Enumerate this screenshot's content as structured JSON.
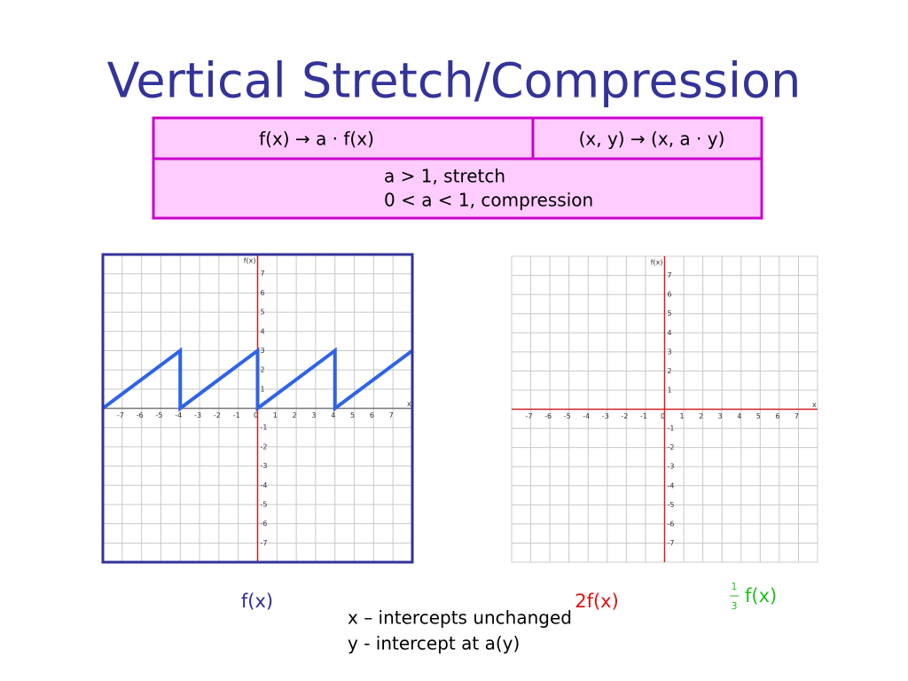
{
  "title": "Vertical Stretch/Compression",
  "table": {
    "header": [
      "f(x) → a · f(x)",
      "(x, y) → (x, a · y)"
    ],
    "body": [
      "a > 1, stretch",
      "0 < a < 1, compression"
    ]
  },
  "graphs": [
    {
      "x_label": "x",
      "y_label": "f(x)",
      "frame": true,
      "xlim": [
        -8,
        8
      ],
      "ylim": [
        -8,
        8
      ],
      "xticks": [
        -7,
        -6,
        -5,
        -4,
        -3,
        -2,
        -1,
        0,
        1,
        2,
        3,
        4,
        5,
        6,
        7
      ],
      "yticks": [
        -7,
        -6,
        -5,
        -4,
        -3,
        -2,
        -1,
        1,
        2,
        3,
        4,
        5,
        6,
        7
      ],
      "line": {
        "color": "#2f63e6",
        "x": [
          -8,
          -4,
          -4,
          0,
          0,
          4,
          4,
          8
        ],
        "y": [
          0,
          3,
          0,
          3,
          0,
          3,
          0,
          3
        ]
      }
    },
    {
      "x_label": "x",
      "y_label": "f(x)",
      "frame": false,
      "xlim": [
        -8,
        8
      ],
      "ylim": [
        -8,
        8
      ],
      "xticks": [
        -7,
        -6,
        -5,
        -4,
        -3,
        -2,
        -1,
        0,
        1,
        2,
        3,
        4,
        5,
        6,
        7
      ],
      "yticks": [
        -7,
        -6,
        -5,
        -4,
        -3,
        -2,
        -1,
        1,
        2,
        3,
        4,
        5,
        6,
        7
      ]
    }
  ],
  "captions": [
    {
      "text": "f(x)",
      "color": "#2b2b96"
    },
    {
      "text": "2f(x)",
      "color": "#e01010"
    },
    {
      "fraction": [
        "1",
        "3"
      ],
      "text": "f(x)",
      "color": "#1fbf1f"
    }
  ],
  "notes": [
    "x – intercepts unchanged",
    "y - intercept at a(y)"
  ]
}
